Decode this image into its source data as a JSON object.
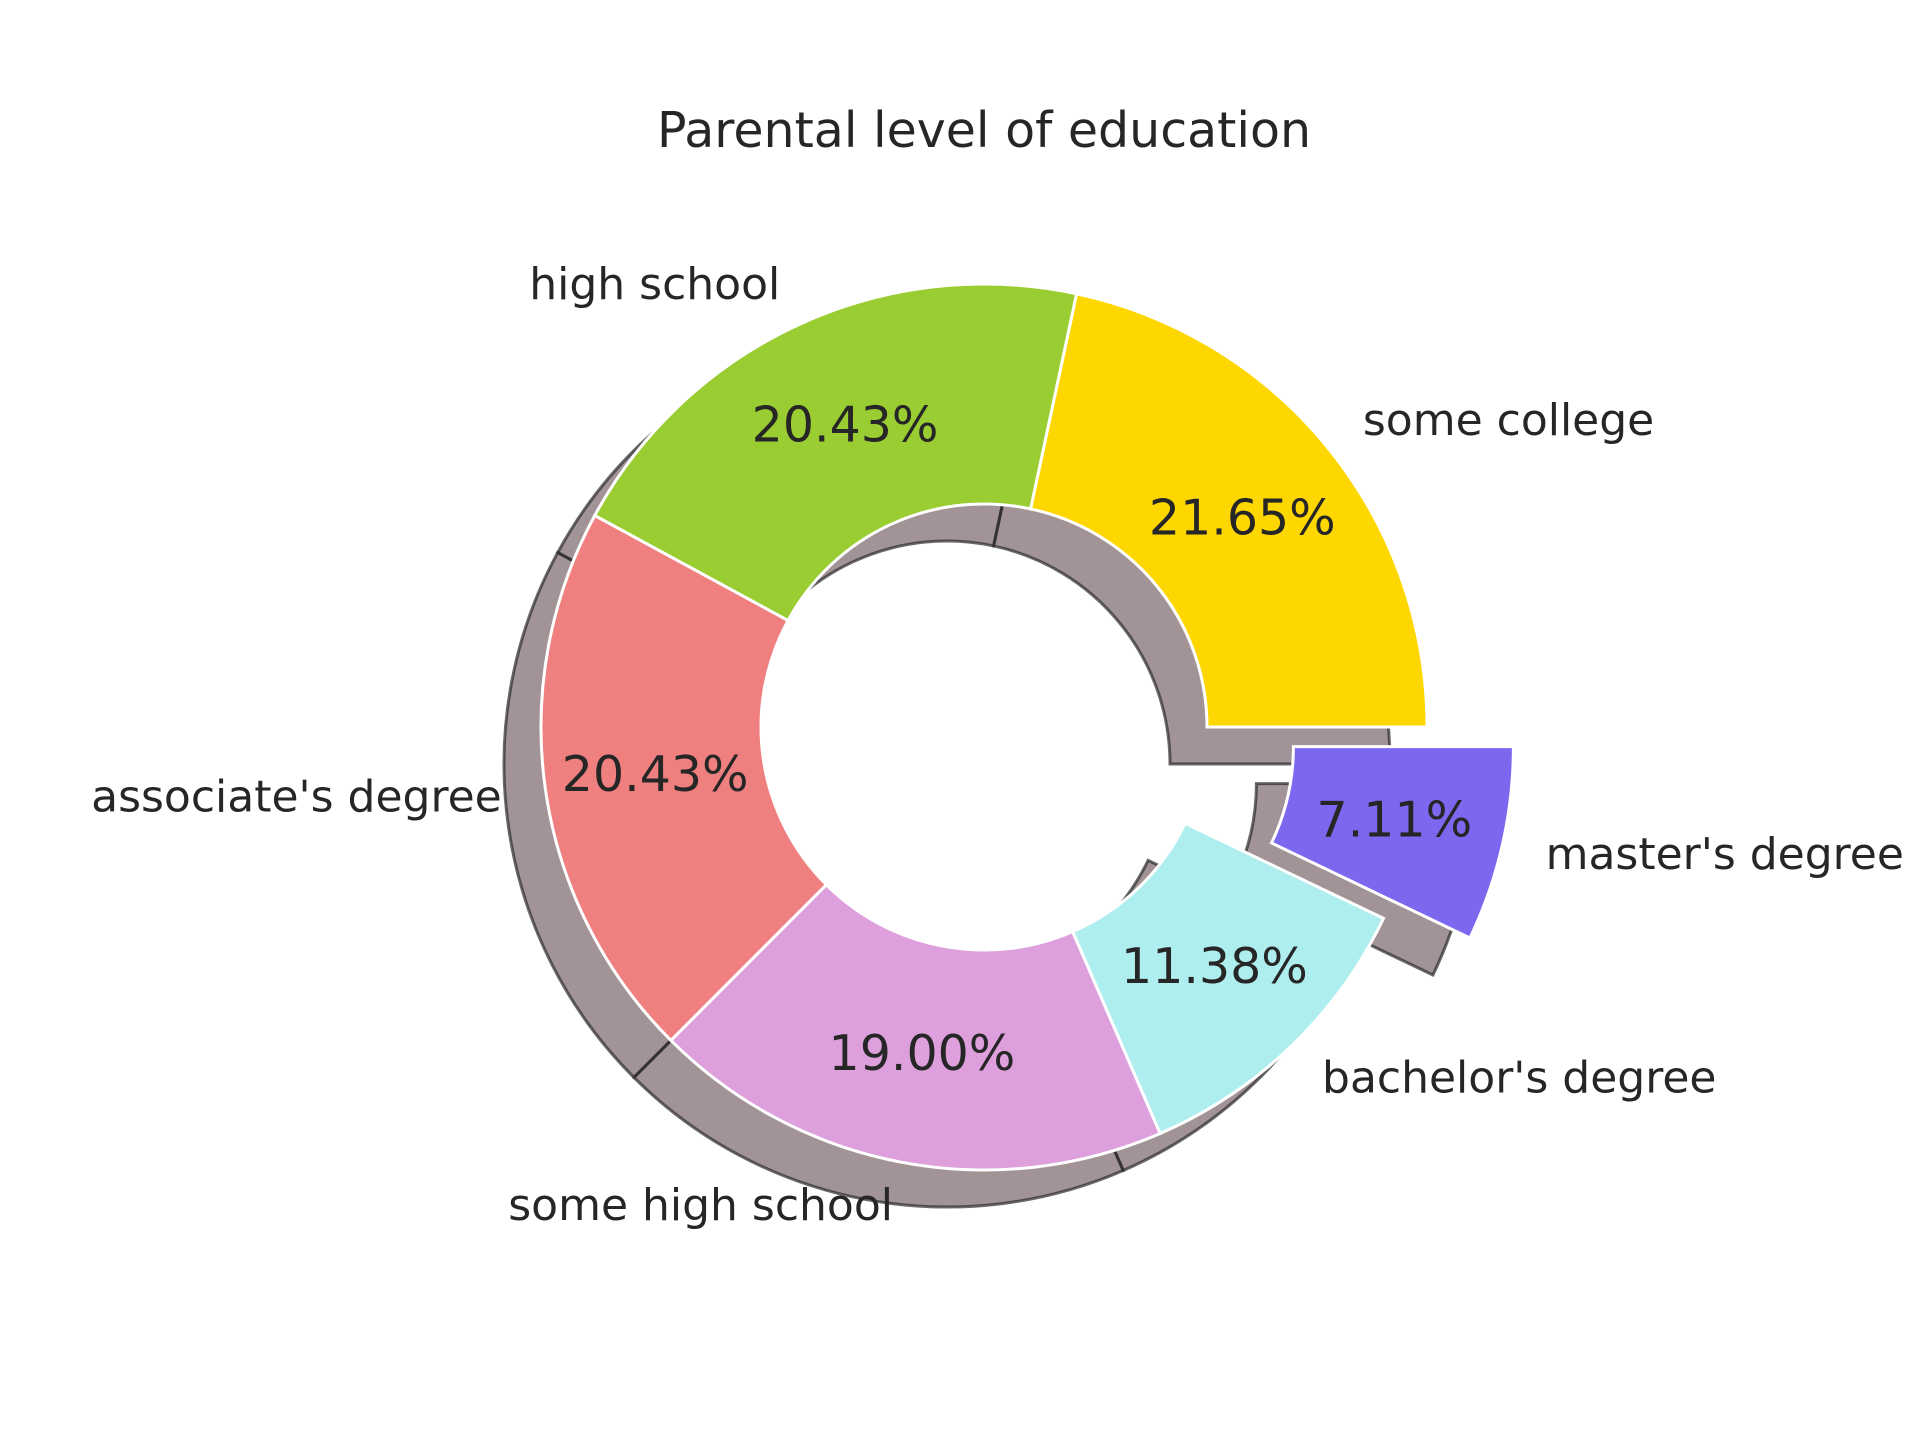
{
  "chart_data": {
    "type": "pie",
    "donut": true,
    "shadow": true,
    "title": "Parental level of education",
    "start_angle_deg": 0,
    "direction": "counterclockwise",
    "slices": [
      {
        "label": "some college",
        "value": 21.65,
        "pct_text": "21.65%",
        "color": "#FFD700",
        "explode": 0
      },
      {
        "label": "high school",
        "value": 20.43,
        "pct_text": "20.43%",
        "color": "#9ACD32",
        "explode": 0
      },
      {
        "label": "associate's degree",
        "value": 20.43,
        "pct_text": "20.43%",
        "color": "#F08080",
        "explode": 0
      },
      {
        "label": "some high school",
        "value": 19.0,
        "pct_text": "19.00%",
        "color": "#DDA0DD",
        "explode": 0
      },
      {
        "label": "bachelor's degree",
        "value": 11.38,
        "pct_text": "11.38%",
        "color": "#AFEEEE",
        "explode": 0
      },
      {
        "label": "master's degree",
        "value": 7.11,
        "pct_text": "7.11%",
        "color": "#7B68EE",
        "explode": 0.2
      }
    ]
  }
}
